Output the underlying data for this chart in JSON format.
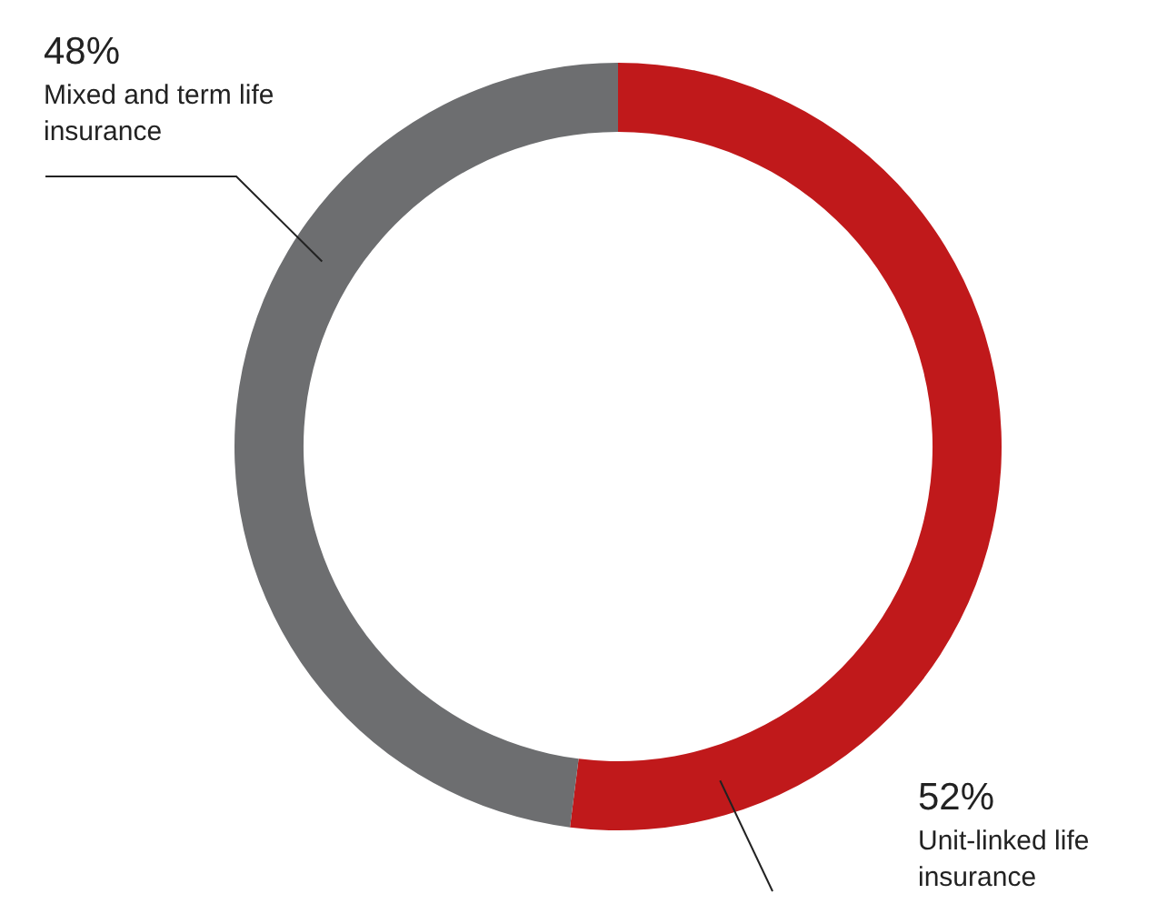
{
  "chart_data": {
    "type": "donut",
    "categories": [
      "Unit-linked life insurance",
      "Mixed and term life insurance"
    ],
    "values": [
      52,
      48
    ],
    "colors": [
      "#c0191b",
      "#6d6e70"
    ],
    "value_labels": [
      "52%",
      "48%"
    ],
    "legend": false
  }
}
